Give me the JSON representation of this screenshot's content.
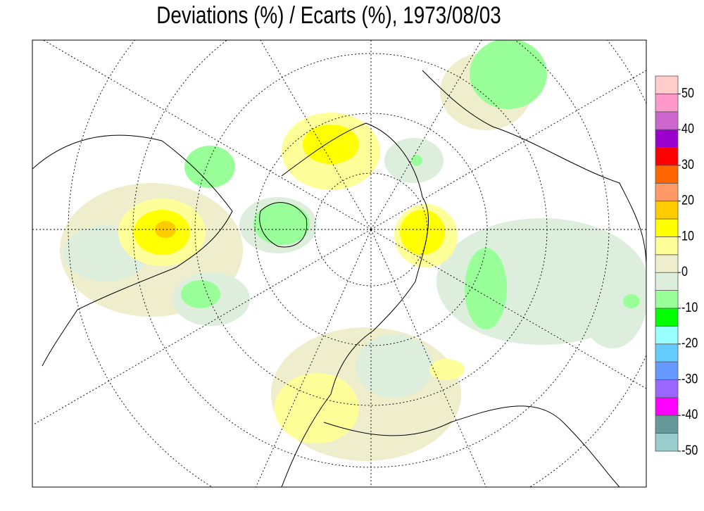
{
  "title": "Deviations (%) / Ecarts (%), 1973/08/03",
  "colorbar": {
    "lim": [
      -50,
      55
    ],
    "ticks": [
      -50,
      -40,
      -30,
      -20,
      -10,
      0,
      10,
      20,
      30,
      40,
      50
    ],
    "colors": [
      "#99cccc",
      "#669999",
      "#ff00ff",
      "#9966ff",
      "#6699ff",
      "#66ccff",
      "#99ffff",
      "#00ff00",
      "#99ff99",
      "#ddeedd",
      "#eeeecc",
      "#ffff99",
      "#ffff00",
      "#ffcc00",
      "#ff9966",
      "#ff6600",
      "#ff0000",
      "#9900cc",
      "#cc66cc",
      "#ff99cc",
      "#ffcccc"
    ]
  }
}
